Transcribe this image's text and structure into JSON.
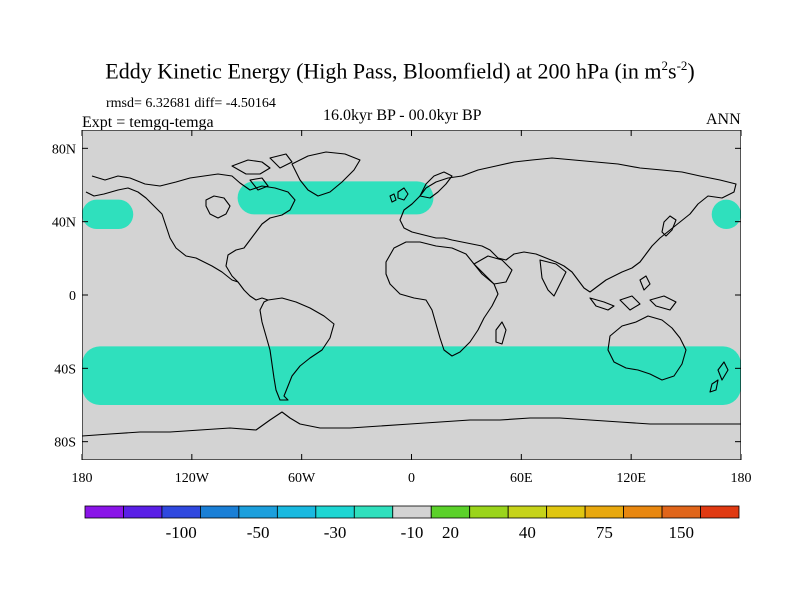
{
  "title_main": "Eddy Kinetic Energy (High Pass, Bloomfield) at 200 hPa (in m",
  "title_sup1": "2",
  "title_mid": "s",
  "title_sup2": "-2",
  "title_end": ")",
  "stats": "rmsd= 6.32681 diff= -4.50164",
  "expt": "Expt = temgq-temga",
  "period": "16.0kyr BP - 00.0kyr BP",
  "season": "ANN",
  "chart_data": {
    "type": "heatmap",
    "title": "Eddy Kinetic Energy (High Pass, Bloomfield) at 200 hPa (in m2s-2)",
    "xlabel": "",
    "ylabel": "",
    "xlim": [
      -180,
      180
    ],
    "ylim": [
      -90,
      90
    ],
    "x_ticks": [
      -180,
      -120,
      -60,
      0,
      60,
      120,
      180
    ],
    "x_tick_labels": [
      "180",
      "120W",
      "60W",
      "0",
      "60E",
      "120E",
      "180"
    ],
    "y_ticks": [
      80,
      40,
      0,
      -40,
      -80
    ],
    "y_tick_labels": [
      "80N",
      "40N",
      "0",
      "40S",
      "80S"
    ],
    "background_value_range": "-10 to 10",
    "background_color": "#d3d3d3",
    "regions": [
      {
        "name": "north-pacific-band",
        "value_range": "-30 to -10",
        "lat_range": [
          36,
          52
        ],
        "lon_ranges": [
          [
            -180,
            -152
          ],
          [
            164,
            180
          ]
        ]
      },
      {
        "name": "north-atlantic-band",
        "value_range": "-30 to -10",
        "lat_range": [
          44,
          62
        ],
        "lon_range": [
          -95,
          12
        ]
      },
      {
        "name": "southern-ocean-band",
        "value_range": "-30 to -10",
        "lat_range": [
          -60,
          -28
        ],
        "lon_range": [
          -180,
          180
        ]
      }
    ],
    "colorbar": {
      "labels": [
        "-100",
        "-50",
        "-30",
        "-10",
        "20",
        "40",
        "75",
        "150"
      ],
      "colors": [
        "#8a14e8",
        "#5a1fe6",
        "#2f48df",
        "#1a7fd6",
        "#1c9fdc",
        "#19b9e0",
        "#1dd6d3",
        "#2fe0bd",
        "#d3d3d3",
        "#5bd12a",
        "#9ad41b",
        "#c6d31a",
        "#e0c611",
        "#e8a80e",
        "#e88710",
        "#e0651a",
        "#e03a12"
      ]
    }
  }
}
